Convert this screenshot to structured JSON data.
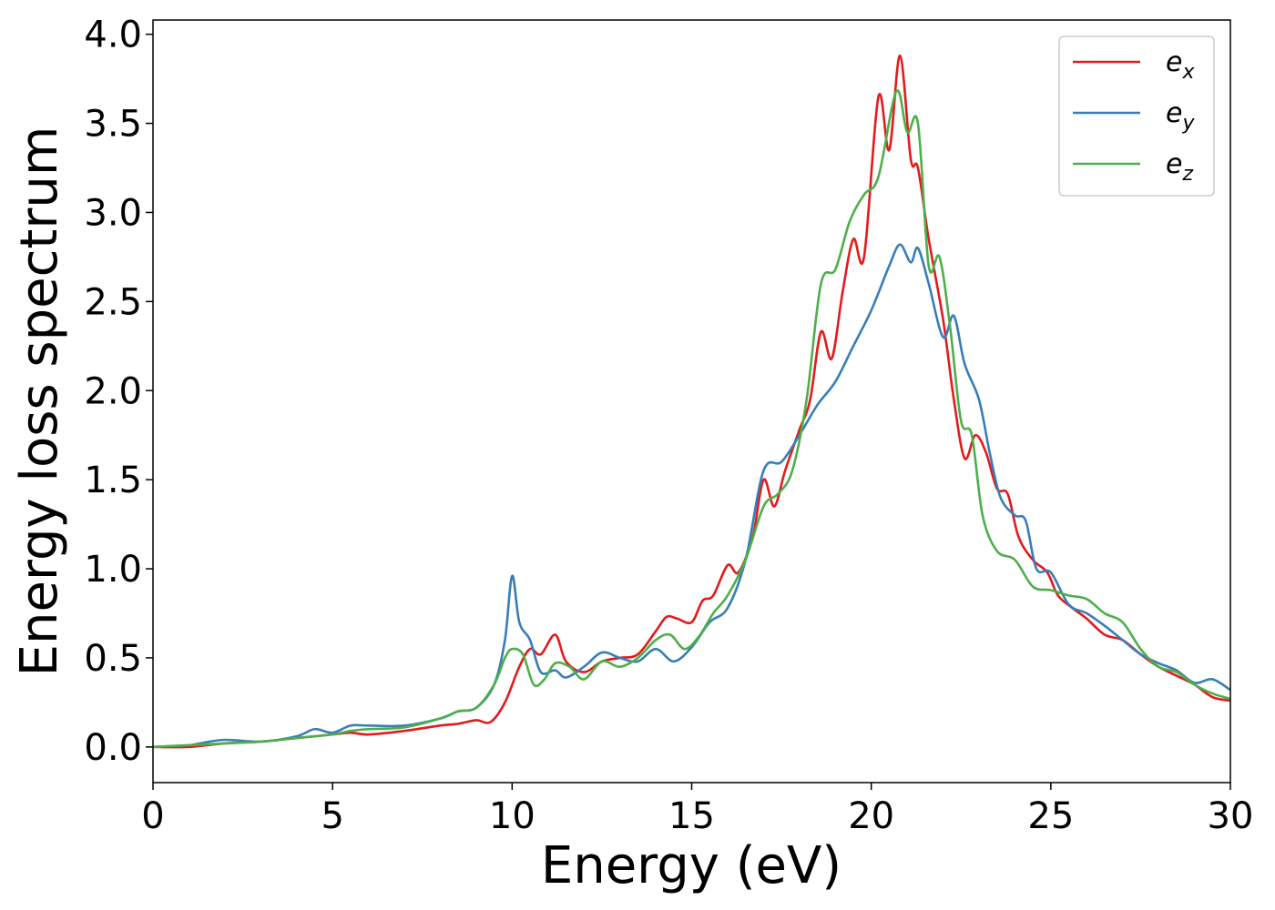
{
  "chart_data": {
    "type": "line",
    "title": "",
    "xlabel": "Energy (eV)",
    "ylabel": "Energy loss spectrum",
    "xlim": [
      0,
      30
    ],
    "ylim": [
      -0.2,
      4.08
    ],
    "xticks": [
      0,
      5,
      10,
      15,
      20,
      25,
      30
    ],
    "yticks": [
      0.0,
      0.5,
      1.0,
      1.5,
      2.0,
      2.5,
      3.0,
      3.5,
      4.0
    ],
    "xtick_labels": [
      "0",
      "5",
      "10",
      "15",
      "20",
      "25",
      "30"
    ],
    "ytick_labels": [
      "0.0",
      "0.5",
      "1.0",
      "1.5",
      "2.0",
      "2.5",
      "3.0",
      "3.5",
      "4.0"
    ],
    "grid": false,
    "legend_position": "top-right",
    "series": [
      {
        "name": "e_x",
        "legend_base": "e",
        "legend_sub": "x",
        "color": "#e41a1c",
        "x": [
          0,
          1,
          2,
          3,
          4,
          5,
          5.5,
          6,
          7,
          8,
          8.5,
          9,
          9.4,
          9.8,
          10.2,
          10.5,
          10.8,
          11.2,
          11.5,
          12,
          12.5,
          13,
          13.5,
          14,
          14.3,
          14.6,
          15,
          15.3,
          15.6,
          16,
          16.3,
          16.7,
          17,
          17.3,
          17.6,
          18,
          18.3,
          18.6,
          18.9,
          19.2,
          19.5,
          19.8,
          20.2,
          20.5,
          20.8,
          21.1,
          21.3,
          21.6,
          22,
          22.3,
          22.6,
          22.9,
          23.2,
          23.5,
          23.8,
          24.1,
          24.5,
          24.9,
          25.2,
          25.6,
          26,
          26.5,
          27,
          27.5,
          28,
          28.5,
          29,
          29.5,
          30
        ],
        "y": [
          0.0,
          0.0,
          0.02,
          0.03,
          0.05,
          0.07,
          0.08,
          0.07,
          0.09,
          0.12,
          0.13,
          0.15,
          0.14,
          0.25,
          0.45,
          0.55,
          0.52,
          0.63,
          0.48,
          0.42,
          0.48,
          0.5,
          0.52,
          0.65,
          0.73,
          0.72,
          0.7,
          0.82,
          0.85,
          1.02,
          0.98,
          1.18,
          1.5,
          1.35,
          1.55,
          1.78,
          1.95,
          2.33,
          2.18,
          2.55,
          2.85,
          2.75,
          3.65,
          3.35,
          3.88,
          3.3,
          3.25,
          2.85,
          2.4,
          1.95,
          1.62,
          1.75,
          1.65,
          1.45,
          1.42,
          1.18,
          1.05,
          0.98,
          0.85,
          0.78,
          0.72,
          0.63,
          0.6,
          0.52,
          0.45,
          0.4,
          0.35,
          0.28,
          0.26
        ]
      },
      {
        "name": "e_y",
        "legend_base": "e",
        "legend_sub": "y",
        "color": "#377eb8",
        "x": [
          0,
          1,
          1.3,
          2,
          3,
          4,
          4.5,
          5,
          5.5,
          6,
          7,
          8,
          8.5,
          9,
          9.5,
          9.8,
          10,
          10.2,
          10.5,
          10.8,
          11.2,
          11.5,
          12,
          12.5,
          13,
          13.5,
          14,
          14.5,
          15,
          15.5,
          16,
          16.5,
          17,
          17.5,
          18,
          18.5,
          19,
          19.5,
          20,
          20.5,
          20.8,
          21.1,
          21.3,
          21.6,
          22,
          22.3,
          22.6,
          23,
          23.3,
          23.6,
          24,
          24.3,
          24.6,
          25,
          25.5,
          26,
          26.5,
          27,
          27.5,
          28,
          28.5,
          29,
          29.5,
          30
        ],
        "y": [
          0.0,
          0.01,
          0.02,
          0.04,
          0.03,
          0.06,
          0.1,
          0.08,
          0.12,
          0.12,
          0.12,
          0.16,
          0.2,
          0.22,
          0.35,
          0.6,
          0.96,
          0.7,
          0.6,
          0.42,
          0.43,
          0.39,
          0.45,
          0.53,
          0.5,
          0.48,
          0.55,
          0.48,
          0.56,
          0.7,
          0.78,
          1.05,
          1.55,
          1.6,
          1.75,
          1.92,
          2.05,
          2.25,
          2.45,
          2.7,
          2.82,
          2.72,
          2.8,
          2.6,
          2.3,
          2.42,
          2.15,
          1.95,
          1.65,
          1.4,
          1.3,
          1.27,
          1.0,
          0.98,
          0.8,
          0.75,
          0.68,
          0.6,
          0.52,
          0.47,
          0.43,
          0.36,
          0.38,
          0.32
        ]
      },
      {
        "name": "e_z",
        "legend_base": "e",
        "legend_sub": "z",
        "color": "#4daf4a",
        "x": [
          0,
          1,
          2,
          3,
          4,
          5,
          5.5,
          6,
          7,
          8,
          8.5,
          9,
          9.5,
          9.8,
          10,
          10.3,
          10.6,
          10.9,
          11.2,
          11.6,
          12,
          12.5,
          13,
          13.5,
          14,
          14.4,
          14.8,
          15.2,
          15.6,
          16,
          16.5,
          17,
          17.4,
          17.8,
          18.2,
          18.6,
          19,
          19.4,
          19.8,
          20.2,
          20.7,
          21,
          21.3,
          21.6,
          21.9,
          22.2,
          22.5,
          22.8,
          23.1,
          23.5,
          24,
          24.5,
          25,
          25.5,
          26,
          26.5,
          27,
          27.5,
          28,
          28.5,
          29,
          29.5,
          30
        ],
        "y": [
          0.0,
          0.01,
          0.02,
          0.03,
          0.05,
          0.07,
          0.09,
          0.1,
          0.11,
          0.16,
          0.2,
          0.22,
          0.35,
          0.5,
          0.55,
          0.52,
          0.35,
          0.38,
          0.47,
          0.45,
          0.38,
          0.48,
          0.45,
          0.5,
          0.6,
          0.63,
          0.55,
          0.62,
          0.75,
          0.85,
          1.05,
          1.35,
          1.42,
          1.55,
          1.95,
          2.6,
          2.68,
          2.95,
          3.1,
          3.2,
          3.68,
          3.45,
          3.5,
          2.7,
          2.75,
          2.35,
          1.83,
          1.75,
          1.3,
          1.1,
          1.05,
          0.9,
          0.88,
          0.85,
          0.83,
          0.75,
          0.7,
          0.55,
          0.45,
          0.42,
          0.35,
          0.3,
          0.27
        ]
      }
    ]
  }
}
